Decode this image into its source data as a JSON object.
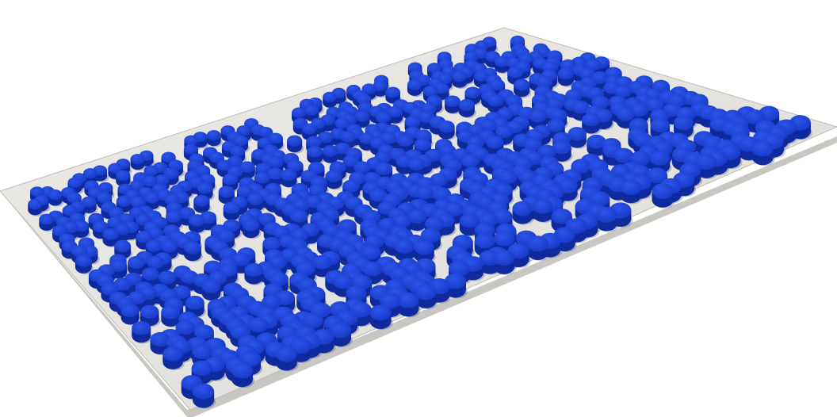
{
  "scene": {
    "subject": "porous-blob-structure",
    "colors": {
      "background": "#ffffff",
      "plate_top": "#e7e5e1",
      "plate_side": "#c9c7c2",
      "plate_edge": "#bdbbb6",
      "blob_top": "#1a3fd1",
      "blob_top_light": "#2a53e6",
      "blob_side": "#0e2a9c",
      "blob_dark": "#0a1f7a",
      "hot_green": "#3aa84a",
      "hot_yellow": "#e8d21c",
      "hot_red": "#d8321c"
    }
  }
}
